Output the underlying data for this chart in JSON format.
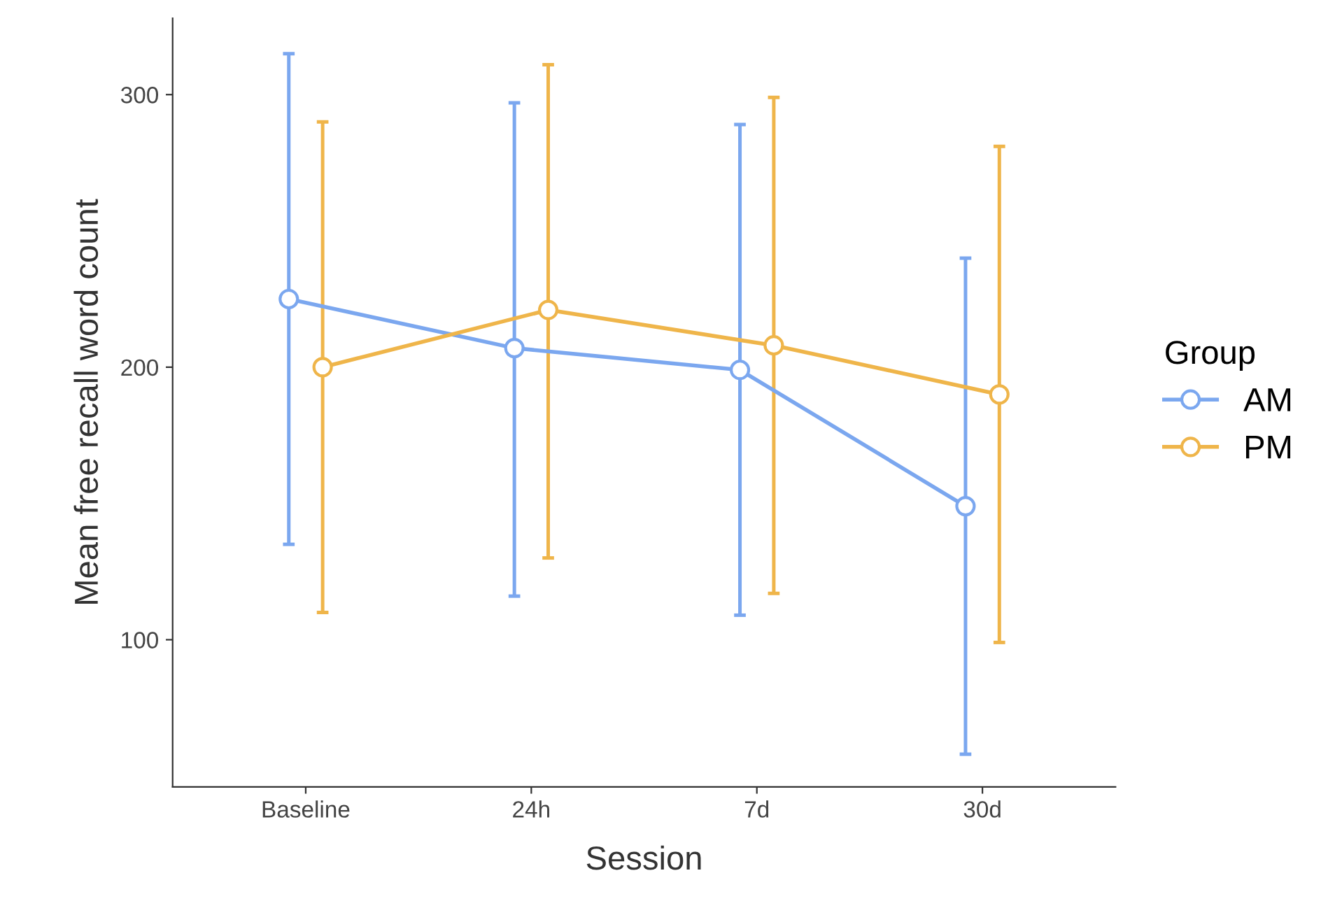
{
  "chart_data": {
    "type": "line",
    "xlabel": "Session",
    "ylabel": "Mean free recall word count",
    "legend_title": "Group",
    "legend": "right",
    "marker": "circle",
    "line_style": "solid",
    "grid": false,
    "categories": [
      "Baseline",
      "24h",
      "7d",
      "30d"
    ],
    "ylim": [
      46,
      328
    ],
    "yticks": [
      100,
      200,
      300
    ],
    "series": [
      {
        "name": "AM",
        "color": "#7ba7ef",
        "values": [
          225,
          207,
          199,
          149
        ],
        "errors": [
          [
            135,
            315
          ],
          [
            116,
            297
          ],
          [
            109,
            289
          ],
          [
            58,
            240
          ]
        ]
      },
      {
        "name": "PM",
        "color": "#efb54a",
        "values": [
          200,
          221,
          208,
          190
        ],
        "errors": [
          [
            110,
            290
          ],
          [
            130,
            311
          ],
          [
            117,
            299
          ],
          [
            99,
            281
          ]
        ]
      }
    ]
  }
}
